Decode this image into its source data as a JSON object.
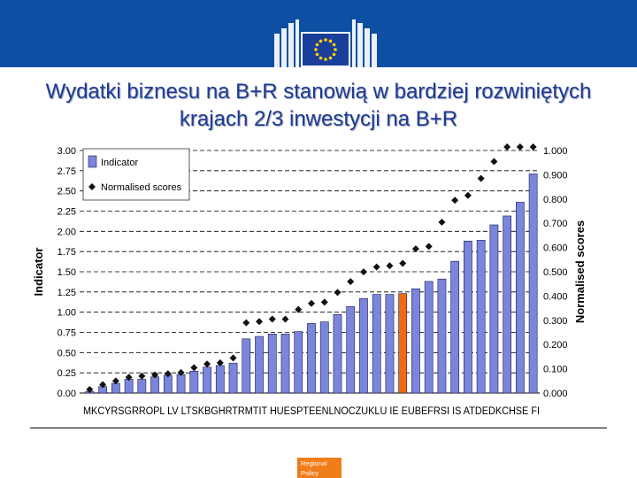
{
  "header": {
    "brand_color": "#0d4fa3",
    "logo": "eu-flag-building-logo"
  },
  "title": "Wydatki biznesu na B+R stanowią w bardziej rozwiniętych krajach 2/3 inwestycji na B+R",
  "footer": {
    "badge_line1": "Regional",
    "badge_line2": "Policy",
    "badge_color": "#f07c1a"
  },
  "chart_data": {
    "type": "bar",
    "categories": [
      "MK",
      "CY",
      "RS",
      "GR",
      "RO",
      "PL",
      "LV",
      "LT",
      "SK",
      "BG",
      "HR",
      "TR",
      "MT",
      "IT",
      "HU",
      "ES",
      "PT",
      "EE",
      "NL",
      "NO",
      "CZ",
      "UK",
      "LU",
      "IE",
      "EU",
      "BE",
      "FR",
      "SI",
      "IS",
      "AT",
      "DE",
      "DK",
      "CH",
      "SE",
      "FI"
    ],
    "series": [
      {
        "name": "Indicator",
        "axis": "left",
        "color": "#7b85d9",
        "highlight_category": "EU",
        "highlight_color": "#f06a10",
        "values": [
          0.02,
          0.08,
          0.12,
          0.17,
          0.17,
          0.2,
          0.22,
          0.23,
          0.27,
          0.32,
          0.34,
          0.37,
          0.67,
          0.7,
          0.73,
          0.73,
          0.76,
          0.86,
          0.88,
          0.97,
          1.07,
          1.17,
          1.22,
          1.22,
          1.23,
          1.29,
          1.38,
          1.41,
          1.63,
          1.88,
          1.89,
          2.08,
          2.19,
          2.36,
          2.71
        ]
      },
      {
        "name": "Normalised scores",
        "axis": "right",
        "marker": "diamond",
        "color": "#111111",
        "values": [
          0.0,
          0.02,
          0.035,
          0.05,
          0.055,
          0.06,
          0.065,
          0.07,
          0.09,
          0.105,
          0.11,
          0.13,
          0.275,
          0.28,
          0.29,
          0.29,
          0.33,
          0.355,
          0.36,
          0.4,
          0.445,
          0.485,
          0.505,
          0.51,
          0.52,
          0.58,
          0.59,
          0.69,
          0.78,
          0.8,
          0.87,
          0.94,
          1.0,
          1.0,
          1.0
        ]
      }
    ],
    "ylabel": "Indicator",
    "y2label": "Normalised scores",
    "ylim": [
      0,
      3.0
    ],
    "y2lim": [
      0,
      1.0
    ],
    "yticks": [
      "0.00",
      "0.25",
      "0.50",
      "0.75",
      "1.00",
      "1.25",
      "1.50",
      "1.75",
      "2.00",
      "2.25",
      "2.50",
      "2.75",
      "3.00"
    ],
    "y2ticks": [
      "0.000",
      "0.100",
      "0.200",
      "0.300",
      "0.400",
      "0.500",
      "0.600",
      "0.700",
      "0.800",
      "0.900",
      "1.000"
    ],
    "xtick_text": "MKCYRSGRROPL LV LTSKBGHRTRMTIT HUESPTEENLNOCZUKLU IE EUBEFRSI IS ATDEDKCHSE FI",
    "grid": "horizontal-dashed",
    "legend_position": "top-left"
  }
}
